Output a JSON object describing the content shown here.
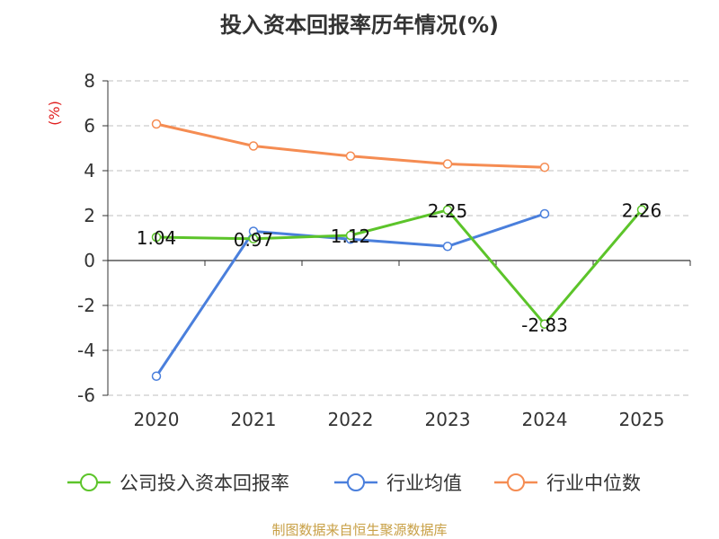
{
  "chart_data": {
    "type": "line",
    "title": "投入资本回报率历年情况(%)",
    "ylabel": "(%)",
    "ylabel_color": "#e02020",
    "categories": [
      "2020",
      "2021",
      "2022",
      "2023",
      "2024",
      "2025"
    ],
    "y_ticks": [
      "8",
      "6",
      "4",
      "2",
      "0",
      "-2",
      "-4",
      "-6"
    ],
    "ylim": [
      -6,
      8
    ],
    "grid": true,
    "legend_position": "bottom",
    "series": [
      {
        "name": "公司投入资本回报率",
        "color": "#5cc42a",
        "values": [
          1.04,
          0.97,
          1.12,
          2.25,
          -2.83,
          2.26
        ],
        "labels": [
          "1.04",
          "0.97",
          "1.12",
          "2.25",
          "-2.83",
          "2.26"
        ]
      },
      {
        "name": "行业均值",
        "color": "#4a7fdc",
        "values": [
          -5.15,
          1.3,
          0.95,
          0.63,
          2.08,
          null
        ]
      },
      {
        "name": "行业中位数",
        "color": "#f58c52",
        "values": [
          6.08,
          5.1,
          4.65,
          4.3,
          4.15,
          null
        ]
      }
    ]
  },
  "source": {
    "text": "制图数据来自恒生聚源数据库",
    "color": "#c8a046"
  }
}
